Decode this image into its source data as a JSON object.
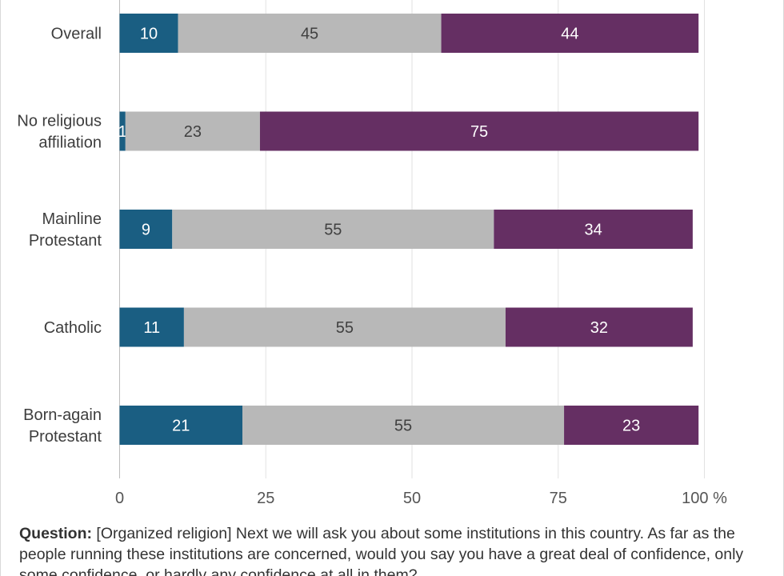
{
  "chart_data": {
    "type": "bar",
    "orientation": "horizontal",
    "stacked": true,
    "categories": [
      "Overall",
      "No religious affiliation",
      "Mainline Protestant",
      "Catholic",
      "Born-again Protestant"
    ],
    "category_lines": [
      [
        "Overall"
      ],
      [
        "No religious",
        "affiliation"
      ],
      [
        "Mainline",
        "Protestant"
      ],
      [
        "Catholic"
      ],
      [
        "Born-again",
        "Protestant"
      ]
    ],
    "series": [
      {
        "values": [
          10,
          1,
          9,
          11,
          21
        ],
        "color": "#1a5e82",
        "label_color": "#ffffff"
      },
      {
        "values": [
          45,
          23,
          55,
          55,
          55
        ],
        "color": "#b8b8b8",
        "label_color": "#404040"
      },
      {
        "values": [
          44,
          75,
          34,
          32,
          23
        ],
        "color": "#652f63",
        "label_color": "#ffffff"
      }
    ],
    "xlim": [
      0,
      100
    ],
    "xticks": [
      0,
      25,
      50,
      75,
      100
    ],
    "xtick_labels": [
      "0",
      "25",
      "50",
      "75",
      "100 %"
    ],
    "grid": true
  },
  "footer": {
    "question_label": "Question:",
    "question_text": " [Organized religion] Next we will ask you about some institutions in this country. As far as the people running these institutions are concerned, would you say you have a great deal of confidence, only some confidence, or hardly any confidence at all in them?"
  }
}
